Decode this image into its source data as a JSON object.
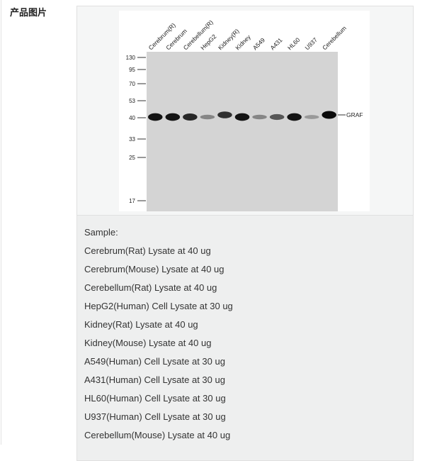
{
  "section_label": "产品图片",
  "blot": {
    "lanes": [
      "Cerebrum(R)",
      "Cerebrum",
      "Cerebellum(R)",
      "HepG2",
      "Kidney(R)",
      "Kidney",
      "A549",
      "A431",
      "HL60",
      "U937",
      "Cerebellum"
    ],
    "band_intensity": [
      0.95,
      0.95,
      0.85,
      0.35,
      0.8,
      0.95,
      0.35,
      0.6,
      0.95,
      0.25,
      1.0
    ],
    "markers": [
      "130",
      "95",
      "70",
      "53",
      "40",
      "33",
      "25",
      "17"
    ],
    "target": "GRAF"
  },
  "caption": {
    "heading": "Sample:",
    "lines": [
      "Cerebrum(Rat) Lysate at 40 ug",
      "Cerebrum(Mouse) Lysate at 40 ug",
      "Cerebellum(Rat) Lysate at 40 ug",
      "HepG2(Human) Cell Lysate at 30 ug",
      "Kidney(Rat) Lysate at 40 ug",
      "Kidney(Mouse) Lysate at 40 ug",
      "A549(Human) Cell Lysate at 30 ug",
      "A431(Human) Cell Lysate at 30 ug",
      "HL60(Human) Cell Lysate at 30 ug",
      "U937(Human) Cell Lysate at 30 ug",
      "Cerebellum(Mouse) Lysate at 40 ug"
    ]
  }
}
